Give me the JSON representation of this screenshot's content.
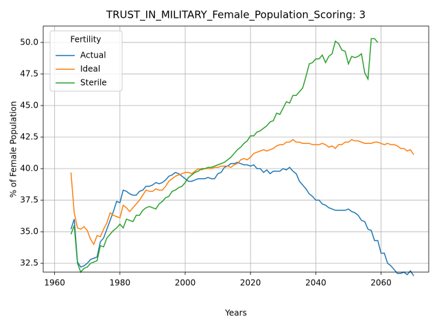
{
  "chart_data": {
    "type": "line",
    "title": "TRUST_IN_MILITARY_Female_Population_Scoring: 3",
    "x_label": "Years",
    "y_label": "% of Female Population",
    "legend_title": "Fertility",
    "legend_position": "upper left",
    "grid": true,
    "x": [
      1965,
      1966,
      1967,
      1968,
      1969,
      1970,
      1971,
      1972,
      1973,
      1974,
      1975,
      1976,
      1977,
      1978,
      1979,
      1980,
      1981,
      1982,
      1983,
      1984,
      1985,
      1986,
      1987,
      1988,
      1989,
      1990,
      1991,
      1992,
      1993,
      1994,
      1995,
      1996,
      1997,
      1998,
      1999,
      2000,
      2001,
      2002,
      2003,
      2004,
      2005,
      2006,
      2007,
      2008,
      2009,
      2010,
      2011,
      2012,
      2013,
      2014,
      2015,
      2016,
      2017,
      2018,
      2019,
      2020,
      2021,
      2022,
      2023,
      2024,
      2025,
      2026,
      2027,
      2028,
      2029,
      2030,
      2031,
      2032,
      2033,
      2034,
      2035,
      2036,
      2037,
      2038,
      2039,
      2040,
      2041,
      2042,
      2043,
      2044,
      2045,
      2046,
      2047,
      2048,
      2049,
      2050,
      2051,
      2052,
      2053,
      2054,
      2055,
      2056,
      2057,
      2058,
      2059,
      2060,
      2061,
      2062,
      2063,
      2064,
      2065,
      2066,
      2067,
      2068,
      2069,
      2070
    ],
    "series": [
      {
        "name": "Actual",
        "color": "#1f77b4",
        "values": [
          35.2,
          36.0,
          32.6,
          32.2,
          32.3,
          32.5,
          32.8,
          32.9,
          33.0,
          34.2,
          34.5,
          35.2,
          35.9,
          36.6,
          37.4,
          37.3,
          38.3,
          38.2,
          38.0,
          37.9,
          37.9,
          38.2,
          38.3,
          38.6,
          38.6,
          38.7,
          38.9,
          38.8,
          38.9,
          39.1,
          39.4,
          39.5,
          39.7,
          39.6,
          39.4,
          39.2,
          39.0,
          39.0,
          39.1,
          39.2,
          39.2,
          39.2,
          39.3,
          39.2,
          39.2,
          39.6,
          39.7,
          40.1,
          40.2,
          40.4,
          40.4,
          40.5,
          40.4,
          40.3,
          40.3,
          40.2,
          40.3,
          40.0,
          40.0,
          39.7,
          39.9,
          39.6,
          39.8,
          39.8,
          39.8,
          40.0,
          39.9,
          40.1,
          39.8,
          39.6,
          39.0,
          38.7,
          38.4,
          38.0,
          37.8,
          37.5,
          37.5,
          37.2,
          37.1,
          36.9,
          36.8,
          36.7,
          36.7,
          36.7,
          36.7,
          36.8,
          36.6,
          36.5,
          36.3,
          35.9,
          35.8,
          35.2,
          35.1,
          34.3,
          34.3,
          33.3,
          33.3,
          32.5,
          32.3,
          32.0,
          31.7,
          31.7,
          31.8,
          31.6,
          31.9,
          31.5
        ]
      },
      {
        "name": "Ideal",
        "color": "#ff7f0e",
        "values": [
          39.7,
          36.5,
          35.3,
          35.2,
          35.4,
          35.1,
          34.4,
          34.0,
          34.7,
          34.6,
          35.2,
          35.7,
          36.5,
          36.3,
          36.2,
          36.1,
          37.1,
          36.9,
          36.6,
          36.9,
          37.2,
          37.5,
          37.9,
          38.3,
          38.2,
          38.2,
          38.4,
          38.3,
          38.3,
          38.6,
          39.0,
          39.2,
          39.4,
          39.5,
          39.6,
          39.7,
          39.7,
          39.6,
          39.8,
          40.0,
          39.9,
          40.0,
          40.0,
          40.0,
          40.1,
          40.1,
          40.2,
          40.2,
          40.2,
          40.1,
          40.3,
          40.4,
          40.7,
          40.8,
          40.7,
          40.9,
          41.2,
          41.3,
          41.4,
          41.5,
          41.4,
          41.5,
          41.6,
          41.8,
          41.9,
          41.9,
          42.1,
          42.1,
          42.3,
          42.1,
          42.1,
          42.0,
          42.0,
          42.0,
          41.9,
          41.9,
          41.9,
          42.0,
          41.9,
          41.7,
          41.8,
          41.6,
          41.9,
          41.9,
          42.1,
          42.1,
          42.3,
          42.2,
          42.2,
          42.1,
          42.0,
          42.0,
          42.0,
          42.1,
          42.1,
          42.0,
          41.9,
          42.0,
          41.9,
          41.9,
          41.8,
          41.6,
          41.6,
          41.4,
          41.5,
          41.1
        ]
      },
      {
        "name": "Sterile",
        "color": "#2ca02c",
        "values": [
          34.8,
          35.5,
          32.5,
          31.8,
          32.1,
          32.2,
          32.5,
          32.6,
          32.7,
          33.9,
          33.8,
          34.5,
          34.8,
          35.1,
          35.3,
          35.6,
          35.3,
          36.0,
          35.9,
          35.8,
          36.3,
          36.3,
          36.7,
          36.9,
          37.0,
          36.9,
          36.8,
          37.2,
          37.4,
          37.7,
          37.8,
          38.2,
          38.3,
          38.5,
          38.6,
          38.9,
          39.3,
          39.5,
          39.7,
          39.8,
          40.0,
          40.0,
          40.1,
          40.1,
          40.2,
          40.3,
          40.4,
          40.5,
          40.7,
          40.9,
          41.2,
          41.5,
          41.7,
          42.0,
          42.2,
          42.6,
          42.6,
          42.9,
          43.0,
          43.2,
          43.4,
          43.7,
          43.8,
          44.4,
          44.3,
          44.8,
          45.3,
          45.2,
          45.8,
          45.8,
          46.1,
          46.4,
          47.3,
          48.3,
          48.4,
          48.7,
          48.7,
          49.0,
          48.4,
          48.9,
          49.1,
          50.1,
          49.9,
          49.4,
          49.3,
          48.3,
          48.9,
          48.8,
          48.9,
          49.1,
          47.6,
          47.1,
          50.3,
          50.3,
          50.0,
          null,
          null,
          null,
          null,
          null,
          null,
          null,
          null,
          null,
          null,
          null
        ]
      }
    ],
    "xlim": [
      1956.5,
      2074.6
    ],
    "xticks": [
      1960,
      1980,
      2000,
      2020,
      2040,
      2060
    ],
    "ylim": [
      31.8,
      51.3
    ],
    "yticks": [
      32.5,
      {
        "value": 35,
        "label": "35.0"
      },
      37.5,
      {
        "value": 40,
        "label": "40.0"
      },
      42.5,
      {
        "value": 45,
        "label": "45.0"
      },
      47.5,
      {
        "value": 50,
        "label": "50.0"
      }
    ]
  }
}
